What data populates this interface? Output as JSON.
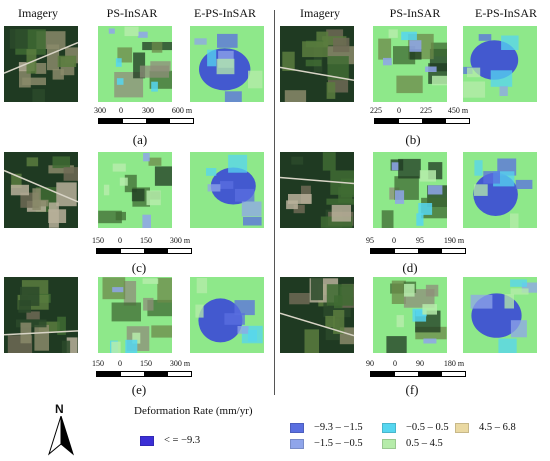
{
  "headers": {
    "left": [
      "Imagery",
      "PS-InSAR",
      "E-PS-InSAR"
    ],
    "right": [
      "Imagery",
      "PS-InSAR",
      "E-PS-InSAR"
    ]
  },
  "panels": [
    {
      "label": "(a)",
      "scale": [
        "300",
        "0",
        "300",
        "600 m"
      ]
    },
    {
      "label": "(b)",
      "scale": [
        "225",
        "0",
        "225",
        "450 m"
      ]
    },
    {
      "label": "(c)",
      "scale": [
        "150",
        "0",
        "150",
        "300 m"
      ]
    },
    {
      "label": "(d)",
      "scale": [
        "95",
        "0",
        "95",
        "190 m"
      ]
    },
    {
      "label": "(e)",
      "scale": [
        "150",
        "0",
        "150",
        "300 m"
      ]
    },
    {
      "label": "(f)",
      "scale": [
        "90",
        "0",
        "90",
        "180 m"
      ]
    }
  ],
  "north_label": "N",
  "legend": {
    "title": "Deformation Rate (mm/yr)",
    "items": [
      {
        "label": "< = −9.3",
        "color": "#3b2fd6"
      },
      {
        "label": "−9.3 – −1.5",
        "color": "#5a6fe0"
      },
      {
        "label": "−1.5 – −0.5",
        "color": "#8fa5ea"
      },
      {
        "label": "−0.5 – 0.5",
        "color": "#56d6f0"
      },
      {
        "label": "0.5 – 4.5",
        "color": "#b6ecaa"
      },
      {
        "label": "4.5 – 6.8",
        "color": "#ead9a2"
      }
    ]
  },
  "colors": {
    "imagery_dark": "#1f3a22",
    "imagery_field": "#3f6b33",
    "psinsar_green": "#8ee88a",
    "psinsar_cyan": "#56d6f0",
    "epsinsar_blue": "#3b49d6"
  }
}
